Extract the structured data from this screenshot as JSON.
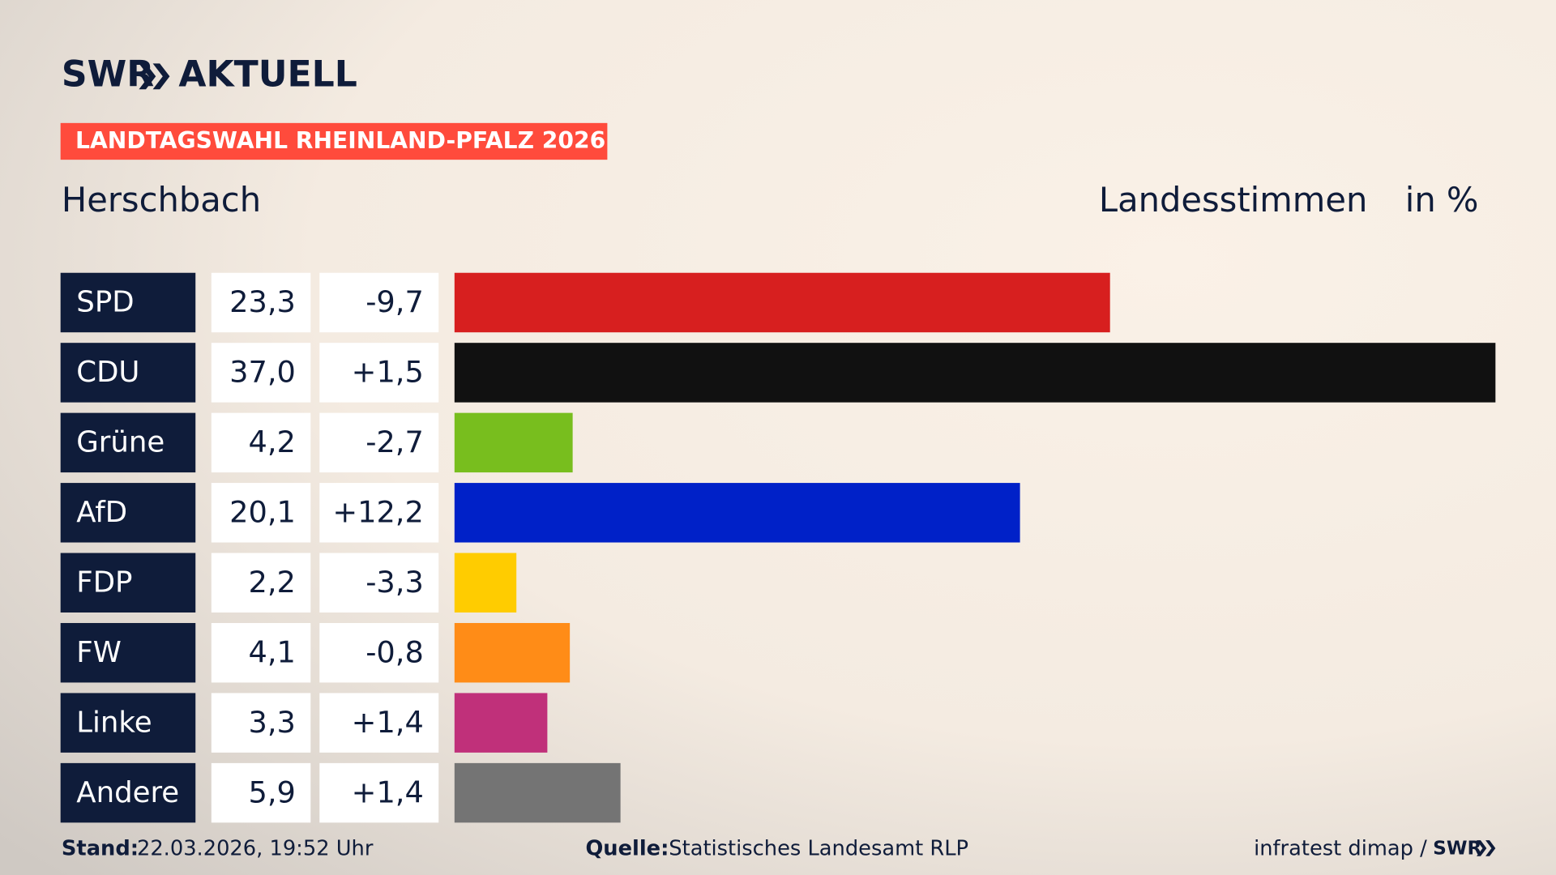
{
  "brand": {
    "name": "SWR",
    "product": "AKTUELL"
  },
  "badge": "LANDTAGSWAHL RHEINLAND-PFALZ 2026",
  "chart_data": {
    "type": "bar",
    "title": "Herschbach",
    "subtitle": "Landesstimmen",
    "unit": "in %",
    "categories": [
      "SPD",
      "CDU",
      "Grüne",
      "AfD",
      "FDP",
      "FW",
      "Linke",
      "Andere"
    ],
    "values": [
      23.3,
      37.0,
      4.2,
      20.1,
      2.2,
      4.1,
      3.3,
      5.9
    ],
    "value_labels": [
      "23,3",
      "37,0",
      "4,2",
      "20,1",
      "2,2",
      "4,1",
      "3,3",
      "5,9"
    ],
    "changes": [
      -9.7,
      1.5,
      -2.7,
      12.2,
      -3.3,
      -0.8,
      1.4,
      1.4
    ],
    "change_labels": [
      "-9,7",
      "+1,5",
      "-2,7",
      "+12,2",
      "-3,3",
      "-0,8",
      "+1,4",
      "+1,4"
    ],
    "colors": [
      "#d71f1f",
      "#111111",
      "#78be1e",
      "#0021c8",
      "#ffcc00",
      "#ff8c17",
      "#c0307a",
      "#747474"
    ]
  },
  "footer": {
    "date_label": "Stand:",
    "date": "22.03.2026, 19:52 Uhr",
    "source_label": "Quelle:",
    "source": "Statistisches Landesamt RLP",
    "credit": "infratest dimap /",
    "credit_brand": "SWR"
  }
}
